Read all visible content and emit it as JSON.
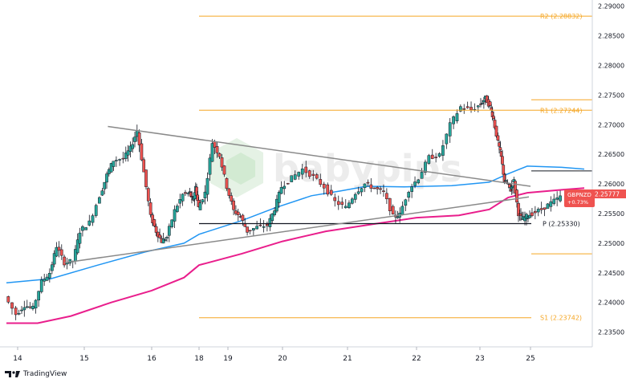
{
  "chart_data": {
    "type": "candlestick",
    "symbol": "GBPNZD",
    "last_price": "2.25777",
    "change_pct": "+0.73%",
    "ylim": [
      2.2325,
      2.2905
    ],
    "y_ticks": [
      "2.29000",
      "2.28500",
      "2.28000",
      "2.27500",
      "2.27000",
      "2.26500",
      "2.26000",
      "2.25500",
      "2.25000",
      "2.24500",
      "2.24000",
      "2.23500"
    ],
    "x_ticks": [
      "14",
      "15",
      "16",
      "18",
      "19",
      "20",
      "21",
      "22",
      "23",
      "25"
    ],
    "levels": [
      {
        "label": "R2 (2.28832)",
        "value": 2.28832,
        "color": "#f5a623"
      },
      {
        "label": "R1 (2.27244)",
        "value": 2.27244,
        "color": "#f5a623"
      },
      {
        "label": "S1 (2.23742)",
        "value": 2.23742,
        "color": "#f5a623"
      },
      {
        "label": "P (2.25330)",
        "value": 2.2533,
        "color": "#131722"
      }
    ],
    "pivot_label_text": "P (2.25330)",
    "extra_levels": [
      2.2622,
      2.2482
    ],
    "trendlines": [
      {
        "from": [
          "15.35",
          2.2697
        ],
        "to": [
          "22.9",
          2.2596
        ],
        "color": "#8a8a8a"
      },
      {
        "from": [
          "14.7",
          2.2467
        ],
        "to": [
          "22.85",
          2.2578
        ],
        "color": "#8a8a8a"
      }
    ],
    "ma_blue": [
      [
        13.88,
        2.2433
      ],
      [
        14.5,
        2.244
      ],
      [
        15.2,
        2.2463
      ],
      [
        15.9,
        2.2485
      ],
      [
        16.6,
        2.25
      ],
      [
        17.2,
        2.2515
      ],
      [
        17.8,
        2.2538
      ],
      [
        18.3,
        2.256
      ],
      [
        18.8,
        2.258
      ],
      [
        19.2,
        2.2588
      ],
      [
        19.6,
        2.2596
      ],
      [
        20.2,
        2.2595
      ],
      [
        20.9,
        2.2597
      ],
      [
        21.6,
        2.2603
      ],
      [
        22.2,
        2.2617
      ],
      [
        22.8,
        2.263
      ],
      [
        23.4,
        2.2628
      ],
      [
        23.9,
        2.2625
      ]
    ],
    "ma_pink": [
      [
        13.88,
        2.2365
      ],
      [
        14.3,
        2.2365
      ],
      [
        14.8,
        2.2377
      ],
      [
        15.4,
        2.24
      ],
      [
        16.0,
        2.242
      ],
      [
        16.6,
        2.2442
      ],
      [
        17.2,
        2.2463
      ],
      [
        17.8,
        2.2482
      ],
      [
        18.4,
        2.2503
      ],
      [
        19.0,
        2.252
      ],
      [
        19.7,
        2.2532
      ],
      [
        20.4,
        2.2543
      ],
      [
        21.0,
        2.2547
      ],
      [
        21.6,
        2.2557
      ],
      [
        22.2,
        2.2577
      ],
      [
        22.8,
        2.2585
      ],
      [
        23.4,
        2.259
      ],
      [
        23.9,
        2.2593
      ]
    ],
    "price_path": [
      [
        13.88,
        2.241
      ],
      [
        14.0,
        2.238
      ],
      [
        14.12,
        2.2395
      ],
      [
        14.25,
        2.239
      ],
      [
        14.38,
        2.2435
      ],
      [
        14.5,
        2.245
      ],
      [
        14.6,
        2.2495
      ],
      [
        14.72,
        2.2467
      ],
      [
        14.85,
        2.247
      ],
      [
        14.95,
        2.252
      ],
      [
        15.1,
        2.2535
      ],
      [
        15.25,
        2.258
      ],
      [
        15.35,
        2.2615
      ],
      [
        15.45,
        2.264
      ],
      [
        15.6,
        2.2643
      ],
      [
        15.7,
        2.266
      ],
      [
        15.8,
        2.269
      ],
      [
        15.9,
        2.262
      ],
      [
        16.0,
        2.2545
      ],
      [
        16.1,
        2.252
      ],
      [
        16.2,
        2.2503
      ],
      [
        16.3,
        2.251
      ],
      [
        16.45,
        2.2555
      ],
      [
        16.6,
        2.2582
      ],
      [
        16.75,
        2.2585
      ],
      [
        16.9,
        2.257
      ],
      [
        17.05,
        2.2595
      ],
      [
        17.2,
        2.256
      ],
      [
        17.3,
        2.2585
      ],
      [
        17.4,
        2.267
      ],
      [
        17.5,
        2.2648
      ],
      [
        17.6,
        2.2595
      ],
      [
        17.7,
        2.2555
      ],
      [
        17.8,
        2.2545
      ],
      [
        17.9,
        2.252
      ],
      [
        18.05,
        2.2527
      ],
      [
        18.2,
        2.253
      ],
      [
        18.3,
        2.2558
      ],
      [
        18.4,
        2.2595
      ],
      [
        18.55,
        2.261
      ],
      [
        18.7,
        2.2625
      ],
      [
        18.85,
        2.2612
      ],
      [
        19.0,
        2.2595
      ],
      [
        19.15,
        2.257
      ],
      [
        19.3,
        2.256
      ],
      [
        19.45,
        2.2585
      ],
      [
        19.6,
        2.26
      ],
      [
        19.75,
        2.2593
      ],
      [
        19.9,
        2.2585
      ],
      [
        20.05,
        2.2545
      ],
      [
        20.15,
        2.2548
      ],
      [
        20.3,
        2.259
      ],
      [
        20.45,
        2.261
      ],
      [
        20.6,
        2.2645
      ],
      [
        20.75,
        2.2648
      ],
      [
        20.9,
        2.27
      ],
      [
        21.05,
        2.273
      ],
      [
        21.2,
        2.2725
      ],
      [
        21.35,
        2.2735
      ],
      [
        21.5,
        2.2745
      ],
      [
        21.65,
        2.273
      ],
      [
        21.75,
        2.271
      ],
      [
        21.9,
        2.267
      ],
      [
        22.0,
        2.2645
      ],
      [
        22.1,
        2.2605
      ],
      [
        22.2,
        2.26
      ],
      [
        22.3,
        2.259
      ],
      [
        22.4,
        2.2605
      ],
      [
        22.55,
        2.255
      ],
      [
        22.65,
        2.254
      ],
      [
        22.8,
        2.2545
      ],
      [
        22.95,
        2.255
      ],
      [
        23.1,
        2.2557
      ],
      [
        23.25,
        2.2568
      ],
      [
        23.4,
        2.2578
      ]
    ]
  },
  "branding": {
    "name": "TradingView"
  },
  "watermark": {
    "text": "babypips"
  }
}
